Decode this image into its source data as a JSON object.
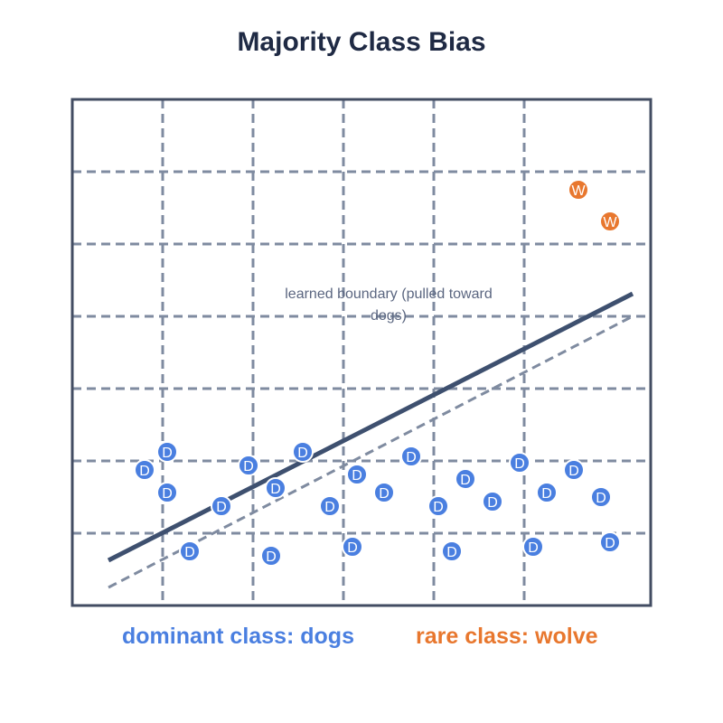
{
  "title": "Majority Class Bias",
  "annotation": "learned boundary (pulled toward dogs)",
  "legend": {
    "dogs": "dominant class: dogs",
    "wolves": "rare class: wolve"
  },
  "colors": {
    "dogs": "#4a7fe0",
    "wolves": "#e8772e",
    "boundary": "#3e506f",
    "ideal_boundary": "#7f8ba0",
    "grid": "#7f8ba0",
    "frame": "#424c62",
    "title": "#1f2a44",
    "annotation": "#5b6680"
  },
  "chart_data": {
    "type": "scatter",
    "title": "Majority Class Bias",
    "xlim": [
      0,
      32
    ],
    "ylim": [
      0,
      28
    ],
    "grid": true,
    "series": [
      {
        "name": "dogs",
        "marker": "D",
        "points": [
          [
            4,
            7.5
          ],
          [
            5.25,
            8.5
          ],
          [
            5.25,
            6.25
          ],
          [
            6.5,
            3
          ],
          [
            8.25,
            5.5
          ],
          [
            9.75,
            7.75
          ],
          [
            11.25,
            6.5
          ],
          [
            11,
            2.75
          ],
          [
            12.75,
            8.5
          ],
          [
            14.25,
            5.5
          ],
          [
            15.75,
            7.25
          ],
          [
            15.5,
            3.25
          ],
          [
            17.25,
            6.25
          ],
          [
            18.75,
            8.25
          ],
          [
            20.25,
            5.5
          ],
          [
            21,
            3
          ],
          [
            21.75,
            7
          ],
          [
            23.25,
            5.75
          ],
          [
            24.75,
            7.9
          ],
          [
            25.5,
            3.25
          ],
          [
            26.25,
            6.25
          ],
          [
            27.75,
            7.5
          ],
          [
            29.25,
            6
          ],
          [
            29.75,
            3.5
          ]
        ]
      },
      {
        "name": "wolves",
        "marker": "W",
        "points": [
          [
            28,
            23
          ],
          [
            29.75,
            21.25
          ]
        ]
      }
    ],
    "lines": [
      {
        "name": "learned boundary",
        "style": "solid",
        "from": [
          2,
          2.5
        ],
        "to": [
          31,
          17.25
        ]
      },
      {
        "name": "ideal boundary",
        "style": "dashed",
        "from": [
          2,
          1
        ],
        "to": [
          31,
          16
        ]
      }
    ]
  }
}
